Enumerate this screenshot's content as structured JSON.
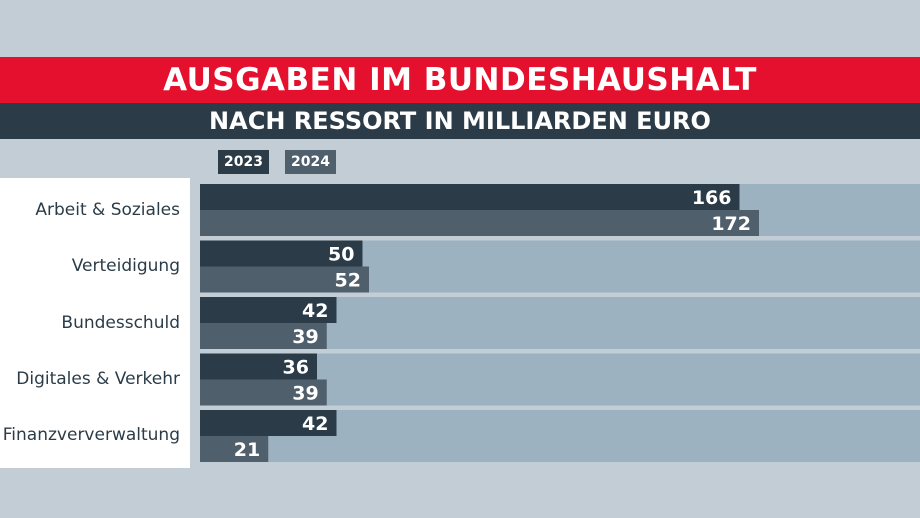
{
  "header": {
    "title": "AUSGABEN IM BUNDESHAUSHALT",
    "subtitle": "NACH RESSORT IN MILLIARDEN EURO"
  },
  "colors": {
    "title_bg": "#e4102e",
    "dark": "#2b3c48",
    "series_2023": "#2b3c48",
    "series_2024": "#4f5f6b",
    "track": "#9db2c0",
    "background": "#c3cdd5"
  },
  "chart_data": {
    "type": "bar",
    "orientation": "horizontal",
    "title": "AUSGABEN IM BUNDESHAUSHALT",
    "subtitle": "NACH RESSORT IN MILLIARDEN EURO",
    "categories": [
      "Arbeit & Soziales",
      "Verteidigung",
      "Bundesschuld",
      "Digitales & Verkehr",
      "Finanzververwaltung"
    ],
    "series": [
      {
        "name": "2023",
        "values": [
          166,
          50,
          42,
          36,
          42
        ]
      },
      {
        "name": "2024",
        "values": [
          172,
          52,
          39,
          39,
          21
        ]
      }
    ],
    "xlim": [
      0,
      200
    ],
    "legend": "top-left",
    "data_labels": true
  }
}
